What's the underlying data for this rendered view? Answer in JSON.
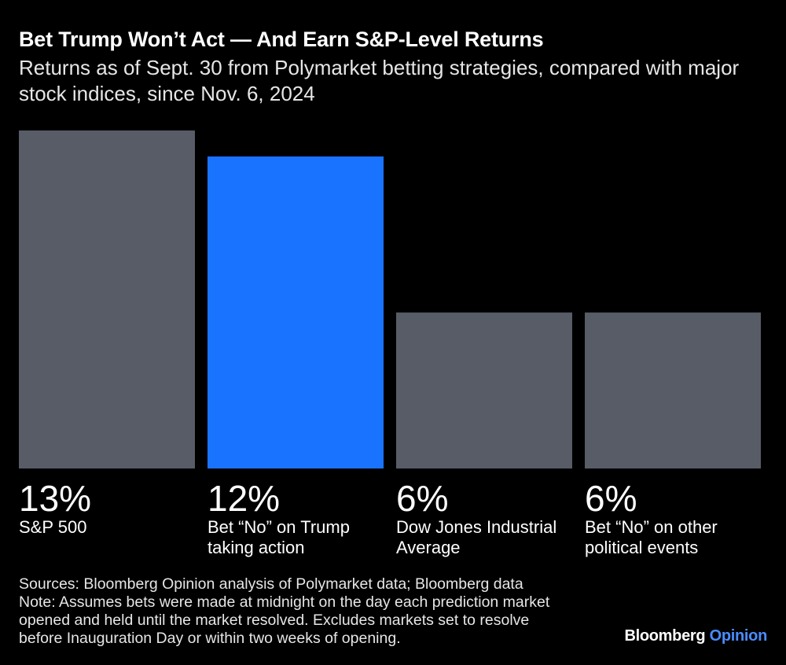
{
  "title": "Bet Trump Won’t Act — And Earn S&P-Level Returns",
  "subtitle": "Returns as of Sept. 30 from Polymarket betting strategies, compared with major stock indices, since Nov. 6, 2024",
  "chart_data": {
    "type": "bar",
    "categories": [
      [
        "S&P 500"
      ],
      [
        "Bet “No” on Trump",
        "taking action"
      ],
      [
        "Dow Jones Industrial",
        "Average"
      ],
      [
        "Bet “No” on other",
        "political events"
      ]
    ],
    "values": [
      13,
      12,
      6,
      6
    ],
    "value_labels": [
      "13%",
      "12%",
      "6%",
      "6%"
    ],
    "colors": [
      "#585c66",
      "#1a73ff",
      "#585c66",
      "#585c66"
    ],
    "ylim": [
      0,
      13
    ],
    "grid": false,
    "legend": "none"
  },
  "notes": {
    "lines": [
      "Sources: Bloomberg Opinion analysis of Polymarket data; Bloomberg data",
      "Note: Assumes bets were made at midnight on the day each prediction market",
      "opened and held until the market resolved. Excludes markets set to resolve",
      "before Inauguration Day or within two weeks of opening."
    ]
  },
  "brand": {
    "name": "Bloomberg",
    "section": "Opinion"
  }
}
